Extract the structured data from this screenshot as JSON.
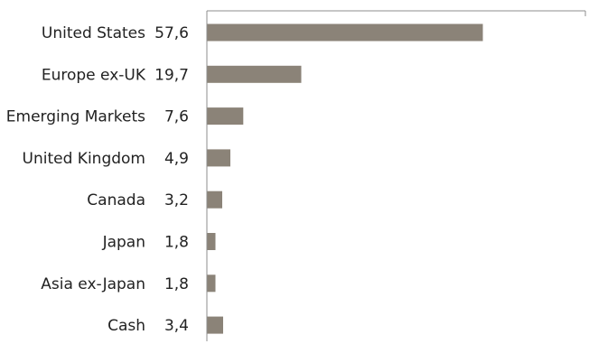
{
  "chart_data": {
    "type": "bar",
    "orientation": "horizontal",
    "categories": [
      "United States",
      "Europe ex-UK",
      "Emerging Markets",
      "United Kingdom",
      "Canada",
      "Japan",
      "Asia ex-Japan",
      "Cash"
    ],
    "values": [
      57.6,
      19.7,
      7.6,
      4.9,
      3.2,
      1.8,
      1.8,
      3.4
    ],
    "value_labels": [
      "57,6",
      "19,7",
      "7,6",
      "4,9",
      "3,2",
      "1,8",
      "1,8",
      "3,4"
    ],
    "xlim": [
      0,
      79
    ],
    "title": "",
    "xlabel": "",
    "ylabel": "",
    "grid": false,
    "legend": "none",
    "colors": {
      "bar": "#8b8378",
      "axis": "#8c8c8c",
      "text": "#222222"
    }
  }
}
